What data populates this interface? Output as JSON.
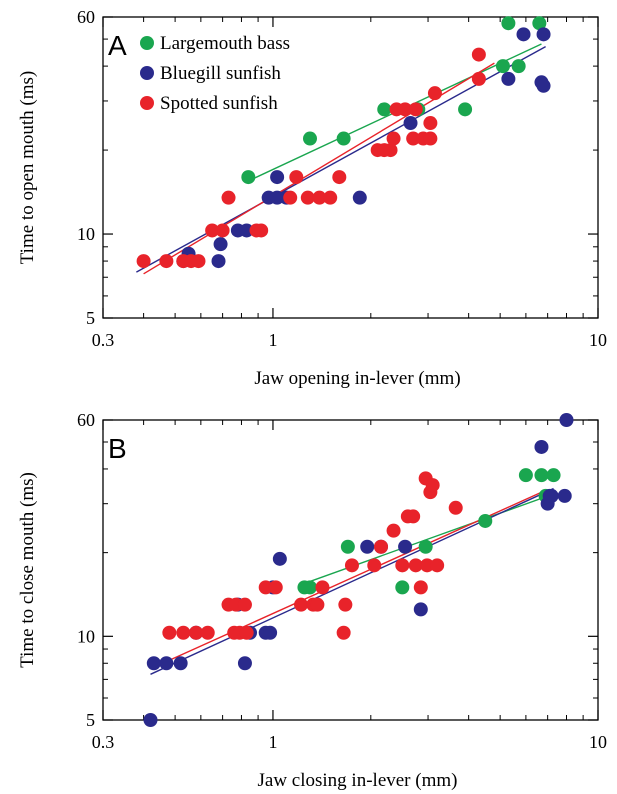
{
  "colors": {
    "largemouth": "#1aa64f",
    "bluegill": "#2a2a8c",
    "spotted": "#e8232a"
  },
  "chart_data": [
    {
      "type": "scatter",
      "panel_label": "A",
      "xlabel": "Jaw opening in-lever (mm)",
      "ylabel": "Time to open mouth (ms)",
      "xscale": "log",
      "yscale": "log",
      "xlim": [
        0.3,
        10
      ],
      "ylim": [
        5,
        60
      ],
      "xticks": [
        {
          "v": 0.3,
          "label": "0.3"
        },
        {
          "v": 1,
          "label": "1"
        },
        {
          "v": 10,
          "label": "10"
        }
      ],
      "yticks": [
        {
          "v": 5,
          "label": "5"
        },
        {
          "v": 10,
          "label": "10"
        },
        {
          "v": 60,
          "label": "60"
        }
      ],
      "legend": [
        "Largemouth bass",
        "Bluegill sunfish",
        "Spotted sunfish"
      ],
      "legend_position": "top-left",
      "series": [
        {
          "name": "Largemouth bass",
          "color_key": "largemouth",
          "points": [
            [
              0.84,
              16
            ],
            [
              1.3,
              22
            ],
            [
              1.65,
              22
            ],
            [
              2.2,
              28
            ],
            [
              2.8,
              28
            ],
            [
              3.9,
              28
            ],
            [
              5.1,
              40
            ],
            [
              5.3,
              57
            ],
            [
              5.7,
              40
            ],
            [
              6.6,
              57
            ]
          ],
          "fit": [
            [
              0.84,
              15.5
            ],
            [
              6.7,
              48
            ]
          ]
        },
        {
          "name": "Bluegill sunfish",
          "color_key": "bluegill",
          "points": [
            [
              0.53,
              8
            ],
            [
              0.55,
              8.5
            ],
            [
              0.68,
              8
            ],
            [
              0.69,
              9.2
            ],
            [
              0.78,
              10.3
            ],
            [
              0.83,
              10.3
            ],
            [
              0.97,
              13.5
            ],
            [
              1.03,
              13.5
            ],
            [
              1.03,
              16
            ],
            [
              1.1,
              13.5
            ],
            [
              1.85,
              13.5
            ],
            [
              2.65,
              25
            ],
            [
              5.3,
              36
            ],
            [
              5.9,
              52
            ],
            [
              6.7,
              35
            ],
            [
              6.8,
              34
            ],
            [
              6.8,
              52
            ]
          ],
          "fit": [
            [
              0.38,
              7.3
            ],
            [
              6.9,
              47
            ]
          ]
        },
        {
          "name": "Spotted sunfish",
          "color_key": "spotted",
          "points": [
            [
              0.4,
              8
            ],
            [
              0.47,
              8
            ],
            [
              0.53,
              8
            ],
            [
              0.56,
              8
            ],
            [
              0.59,
              8
            ],
            [
              0.65,
              10.3
            ],
            [
              0.7,
              10.3
            ],
            [
              0.73,
              13.5
            ],
            [
              0.89,
              10.3
            ],
            [
              0.92,
              10.3
            ],
            [
              1.13,
              13.5
            ],
            [
              1.18,
              16
            ],
            [
              1.28,
              13.5
            ],
            [
              1.39,
              13.5
            ],
            [
              1.5,
              13.5
            ],
            [
              1.6,
              16
            ],
            [
              2.1,
              20
            ],
            [
              2.2,
              20
            ],
            [
              2.3,
              20
            ],
            [
              2.35,
              22
            ],
            [
              2.4,
              28
            ],
            [
              2.55,
              28
            ],
            [
              2.7,
              22
            ],
            [
              2.75,
              28
            ],
            [
              2.9,
              22
            ],
            [
              3.05,
              22
            ],
            [
              3.05,
              25
            ],
            [
              3.15,
              32
            ],
            [
              4.3,
              36
            ],
            [
              4.3,
              44
            ]
          ],
          "fit": [
            [
              0.4,
              7.2
            ],
            [
              4.8,
              41
            ]
          ]
        }
      ]
    },
    {
      "type": "scatter",
      "panel_label": "B",
      "xlabel": "Jaw closing in-lever  (mm)",
      "ylabel": "Time to close mouth (ms)",
      "xscale": "log",
      "yscale": "log",
      "xlim": [
        0.3,
        10
      ],
      "ylim": [
        5,
        60
      ],
      "xticks": [
        {
          "v": 0.3,
          "label": "0.3"
        },
        {
          "v": 1,
          "label": "1"
        },
        {
          "v": 10,
          "label": "10"
        }
      ],
      "yticks": [
        {
          "v": 5,
          "label": "5"
        },
        {
          "v": 10,
          "label": "10"
        },
        {
          "v": 60,
          "label": "60"
        }
      ],
      "series": [
        {
          "name": "Largemouth bass",
          "color_key": "largemouth",
          "points": [
            [
              1.25,
              15
            ],
            [
              1.3,
              15
            ],
            [
              1.7,
              21
            ],
            [
              2.5,
              15
            ],
            [
              2.95,
              21
            ],
            [
              4.5,
              26
            ],
            [
              6,
              38
            ],
            [
              6.7,
              38
            ],
            [
              6.9,
              32
            ],
            [
              7.3,
              38
            ]
          ],
          "fit": [
            [
              1.25,
              15.5
            ],
            [
              7.3,
              32.5
            ]
          ]
        },
        {
          "name": "Bluegill sunfish",
          "color_key": "bluegill",
          "points": [
            [
              0.42,
              5
            ],
            [
              0.43,
              8
            ],
            [
              0.47,
              8
            ],
            [
              0.52,
              8
            ],
            [
              0.58,
              10.3
            ],
            [
              0.78,
              13
            ],
            [
              0.82,
              8
            ],
            [
              0.85,
              10.3
            ],
            [
              0.95,
              10.3
            ],
            [
              0.98,
              10.3
            ],
            [
              1,
              15
            ],
            [
              1.05,
              19
            ],
            [
              1.95,
              21
            ],
            [
              2.15,
              21
            ],
            [
              2.55,
              21
            ],
            [
              2.85,
              12.5
            ],
            [
              6.7,
              48
            ],
            [
              7,
              30
            ],
            [
              7.1,
              32
            ],
            [
              7.2,
              32
            ],
            [
              7.9,
              32
            ],
            [
              8,
              60
            ]
          ],
          "fit": [
            [
              0.42,
              7.3
            ],
            [
              7.3,
              34
            ]
          ]
        },
        {
          "name": "Spotted sunfish",
          "color_key": "spotted",
          "points": [
            [
              0.48,
              10.3
            ],
            [
              0.53,
              10.3
            ],
            [
              0.58,
              10.3
            ],
            [
              0.63,
              10.3
            ],
            [
              0.73,
              13
            ],
            [
              0.76,
              10.3
            ],
            [
              0.77,
              13
            ],
            [
              0.79,
              10.3
            ],
            [
              0.82,
              13
            ],
            [
              0.83,
              10.3
            ],
            [
              0.95,
              15
            ],
            [
              1.02,
              15
            ],
            [
              1.22,
              13
            ],
            [
              1.33,
              13
            ],
            [
              1.37,
              13
            ],
            [
              1.42,
              15
            ],
            [
              1.65,
              10.3
            ],
            [
              1.67,
              13
            ],
            [
              1.75,
              18
            ],
            [
              2.05,
              18
            ],
            [
              2.15,
              21
            ],
            [
              2.35,
              24
            ],
            [
              2.5,
              18
            ],
            [
              2.6,
              27
            ],
            [
              2.7,
              27
            ],
            [
              2.75,
              18
            ],
            [
              2.85,
              15
            ],
            [
              2.95,
              37
            ],
            [
              2.98,
              18
            ],
            [
              3.05,
              33
            ],
            [
              3.1,
              35
            ],
            [
              3.2,
              18
            ],
            [
              3.65,
              29
            ]
          ],
          "fit": [
            [
              0.48,
              8.2
            ],
            [
              6.9,
              33.5
            ]
          ]
        }
      ]
    }
  ]
}
